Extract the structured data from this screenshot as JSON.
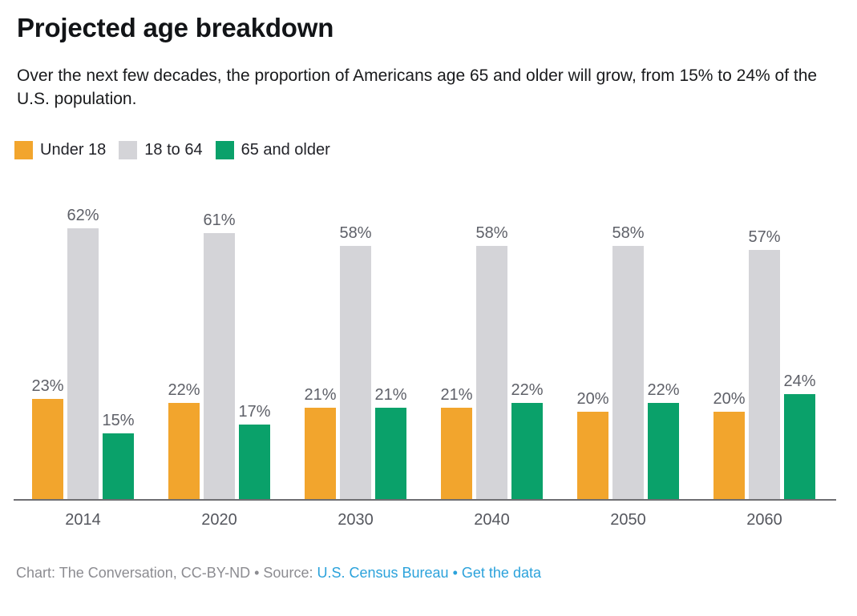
{
  "header": {
    "title": "Projected age breakdown",
    "subtitle": "Over the next few decades, the proportion of Americans age 65 and older will grow, from 15% to 24% of the U.S. population."
  },
  "legend": {
    "items": [
      {
        "label": "Under 18",
        "color": "#F2A52D"
      },
      {
        "label": "18 to 64",
        "color": "#D4D4D8"
      },
      {
        "label": "65 and older",
        "color": "#0AA16A"
      }
    ]
  },
  "chart_data": {
    "type": "bar",
    "title": "Projected age breakdown",
    "categories": [
      "2014",
      "2020",
      "2030",
      "2040",
      "2050",
      "2060"
    ],
    "series": [
      {
        "name": "Under 18",
        "color": "#F2A52D",
        "values": [
          23,
          22,
          21,
          21,
          20,
          20
        ]
      },
      {
        "name": "18 to 64",
        "color": "#D4D4D8",
        "values": [
          62,
          61,
          58,
          58,
          58,
          57
        ]
      },
      {
        "name": "65 and older",
        "color": "#0AA16A",
        "values": [
          15,
          17,
          21,
          22,
          22,
          24
        ]
      }
    ],
    "value_suffix": "%",
    "ylim": [
      0,
      62
    ],
    "grid": false,
    "data_labels": true,
    "legend_position": "top",
    "xlabel": "",
    "ylabel": ""
  },
  "footer": {
    "credit": "Chart: The Conversation, CC-BY-ND • Source:",
    "source_link": "U.S. Census Bureau",
    "separator": "•",
    "data_link": "Get the data"
  }
}
